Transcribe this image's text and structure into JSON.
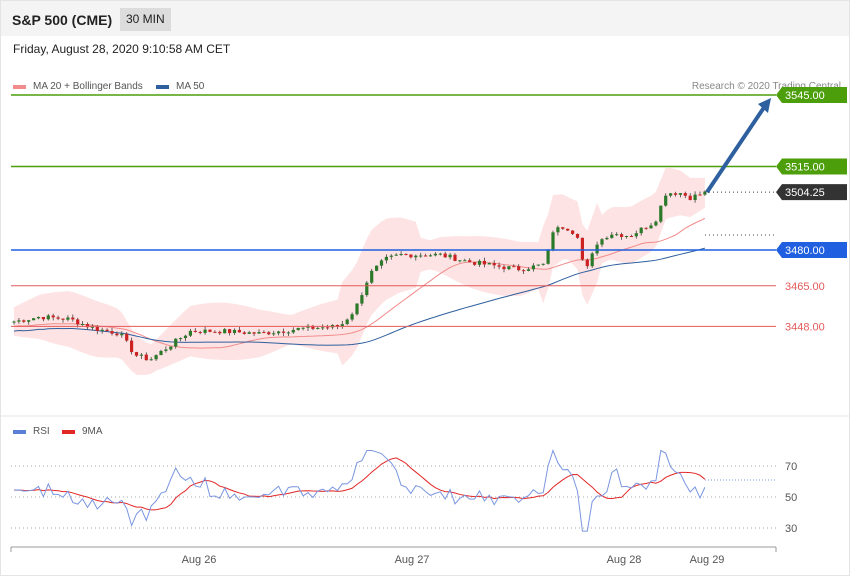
{
  "header": {
    "title": "S&P 500 (CME)",
    "timeframe": "30 MIN"
  },
  "date": "Friday, August 28, 2020 9:10:58 AM CET",
  "legend_main": [
    {
      "label": "MA 20 + Bollinger Bands",
      "color": "#f28b8b"
    },
    {
      "label": "MA 50",
      "color": "#2e5f9e"
    }
  ],
  "legend_rsi": [
    {
      "label": "RSI",
      "color": "#5b7fd6"
    },
    {
      "label": "9MA",
      "color": "#e32626"
    }
  ],
  "credit": "Research © 2020 Trading Central",
  "colors": {
    "up": "#2a7a2a",
    "down": "#cc2222",
    "resistance": "#4c9e0a",
    "pivot": "#1f5fe0",
    "support": "#e45a5a",
    "last": "#333333",
    "arrow": "#2e5f9e"
  },
  "chart_data": {
    "type": "candlestick",
    "price_range": [
      3420,
      3555
    ],
    "levels": [
      {
        "value": 3545.0,
        "label": "3545.00",
        "kind": "resistance"
      },
      {
        "value": 3515.0,
        "label": "3515.00",
        "kind": "resistance"
      },
      {
        "value": 3504.25,
        "label": "3504.25",
        "kind": "last"
      },
      {
        "value": 3480.0,
        "label": "3480.00",
        "kind": "pivot"
      },
      {
        "value": 3465.0,
        "label": "3465.00",
        "kind": "support"
      },
      {
        "value": 3448.0,
        "label": "3448.00",
        "kind": "support"
      }
    ],
    "x_ticks": [
      "Aug 26",
      "Aug 27",
      "Aug 28",
      "Aug 29"
    ],
    "rsi_ticks": [
      70,
      50,
      30
    ],
    "forecast": {
      "from": 3504.25,
      "to": 3545.0
    }
  }
}
